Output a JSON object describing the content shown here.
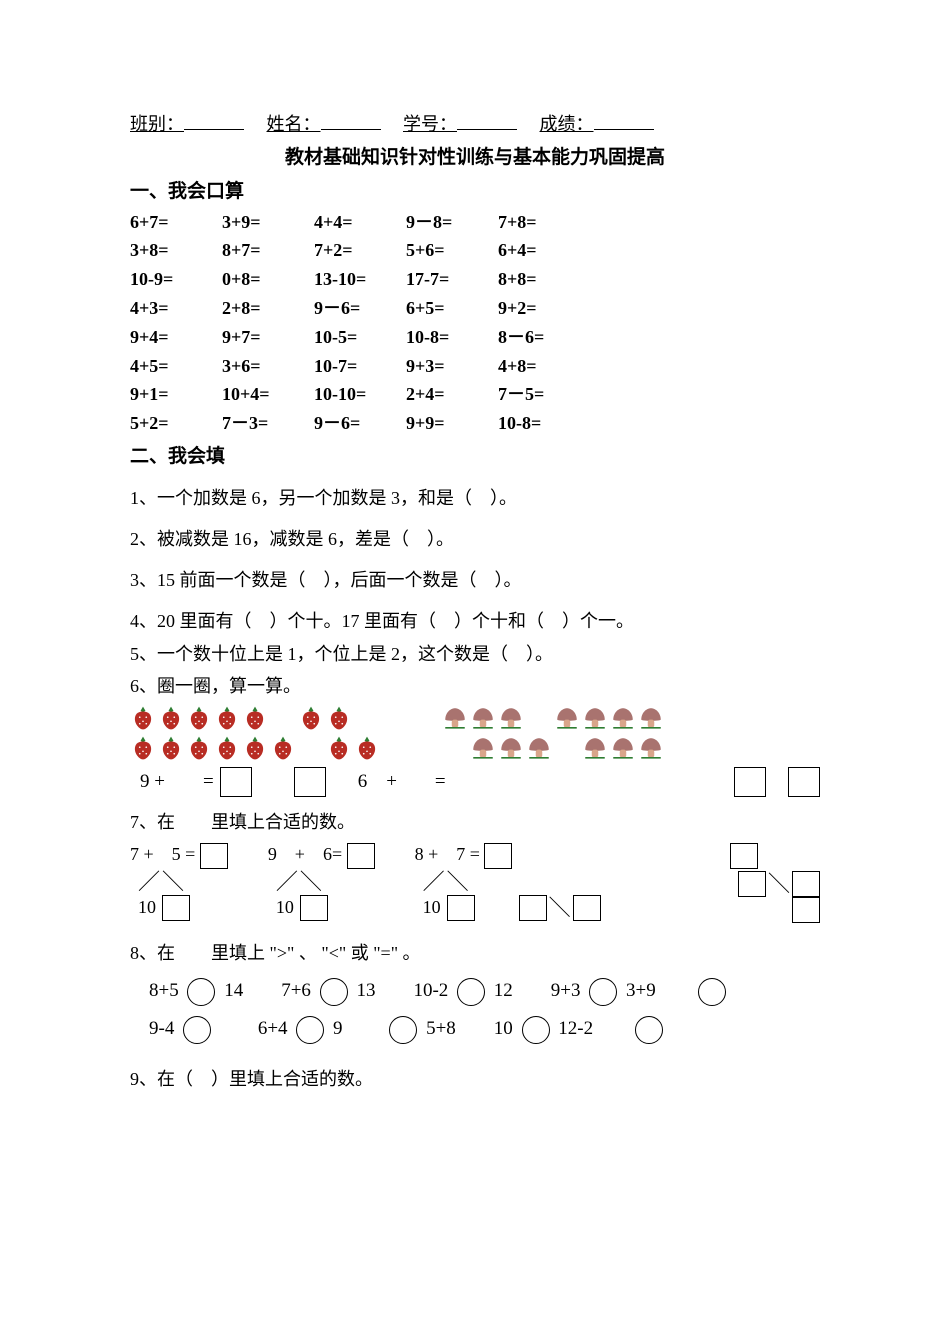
{
  "header": {
    "class_label": "班别：",
    "name_label": "姓名：",
    "id_label": "学号：",
    "score_label": "成绩：",
    "title": "教材基础知识针对性训练与基本能力巩固提高"
  },
  "sec1": {
    "title": "一、我会口算",
    "rows": [
      [
        "6+7=",
        "3+9=",
        "4+4=",
        "9－8=",
        "7+8="
      ],
      [
        "3+8=",
        "8+7=",
        "7+2=",
        "5+6=",
        "6+4="
      ],
      [
        "10-9=",
        "0+8=",
        "13-10=",
        "17-7=",
        "8+8="
      ],
      [
        "4+3=",
        "2+8=",
        "9－6=",
        "6+5=",
        "9+2="
      ],
      [
        "9+4=",
        "9+7=",
        "10-5=",
        "10-8=",
        "8－6="
      ],
      [
        "4+5=",
        "3+6=",
        "10-7=",
        "9+3=",
        "4+8="
      ],
      [
        "9+1=",
        "10+4=",
        "10-10=",
        "2+4=",
        "7－5="
      ],
      [
        "5+2=",
        "7－3=",
        "9－6=",
        "9+9=",
        "10-8="
      ]
    ]
  },
  "sec2": {
    "title": "二、我会填",
    "q1": "1、一个加数是 6，另一个加数是 3，和是（　）。",
    "q2": "2、被减数是 16，减数是 6，差是（　）。",
    "q3": "3、15 前面一个数是（　），后面一个数是（　）。",
    "q4": "4、20 里面有（　）个十。17 里面有（　）个十和（　）个一。",
    "q5": "5、一个数十位上是 1，个位上是 2，这个数是（　）。",
    "q6": {
      "title": "6、圈一圈，算一算。",
      "left_rows": [
        [
          5,
          2
        ],
        [
          6,
          2
        ]
      ],
      "right_rows": [
        [
          3,
          4
        ],
        [
          3,
          3
        ]
      ],
      "eq1_lhs": "9 +　　=",
      "eq2_lhs": "6　+　　=",
      "colors": {
        "strawberry": "#b82c23",
        "leaf": "#2e7d32",
        "mushroom_cap": "#a9736f",
        "mushroom_stem": "#d9a58a"
      }
    },
    "q7": {
      "title": "7、在　　里填上合适的数。",
      "items": [
        {
          "top": "7 +　5 =",
          "under1": "10"
        },
        {
          "top": "9　+　6=",
          "under1": "10"
        },
        {
          "top": "8 +　7 =",
          "under1": "10"
        }
      ]
    },
    "q8": {
      "title": "8、在　　里填上 \">\" 、 \"<\" 或 \"=\" 。",
      "row1": [
        "8+5",
        "14",
        "7+6",
        "13",
        "10-2",
        "12",
        "9+3",
        "3+9"
      ],
      "row2": [
        "9-4",
        "",
        "6+4",
        "9",
        "",
        "5+8",
        "10",
        "12-2"
      ]
    },
    "q9": "9、在（　）里填上合适的数。"
  }
}
